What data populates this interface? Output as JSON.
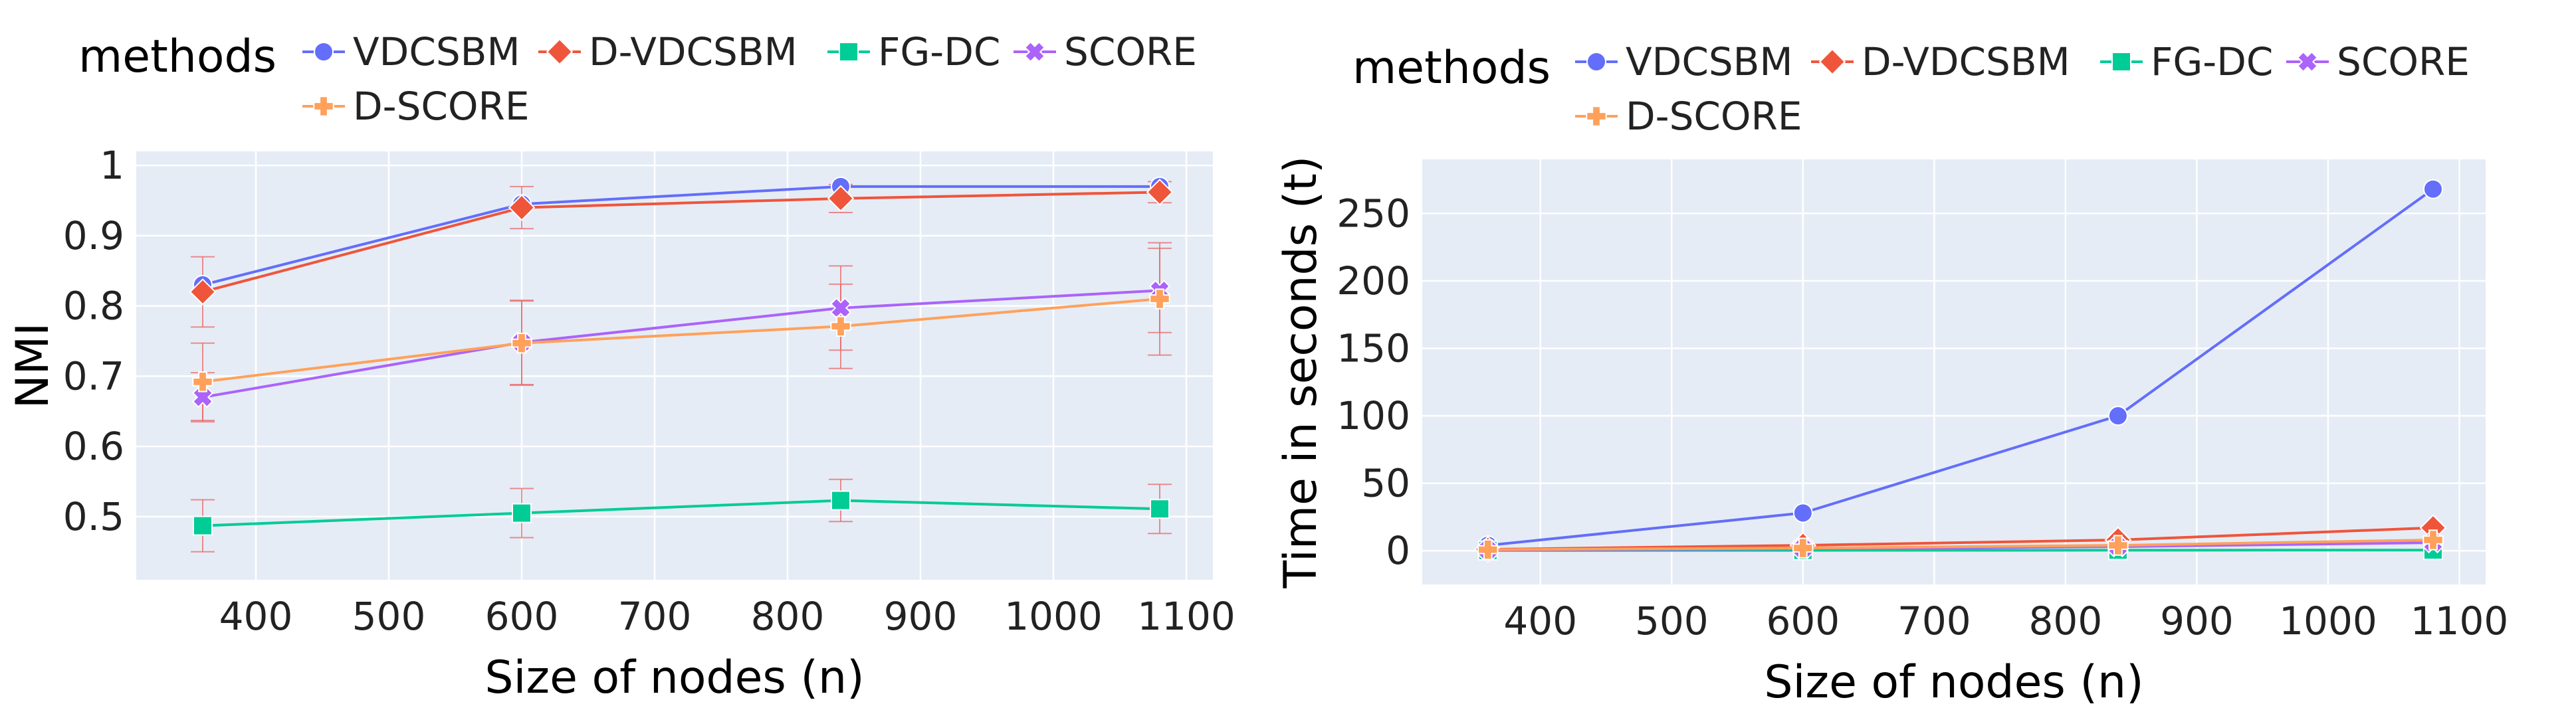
{
  "legend": {
    "title": "methods",
    "colors": {
      "VDCSBM": "#636efa",
      "D-VDCSBM": "#ef553b",
      "FG-DC": "#00cc96",
      "SCORE": "#ab63fa",
      "D-SCORE": "#ffa15a"
    },
    "markers": {
      "VDCSBM": "circle",
      "D-VDCSBM": "diamond",
      "FG-DC": "square",
      "SCORE": "x",
      "D-SCORE": "cross"
    }
  },
  "chart_data": [
    {
      "type": "line",
      "panel": "left",
      "title": "",
      "xlabel": "Size of nodes (n)",
      "ylabel": "NMI",
      "xlim": [
        310,
        1120
      ],
      "ylim": [
        0.41,
        1.02
      ],
      "xticks": [
        400,
        500,
        600,
        700,
        800,
        900,
        1000,
        1100
      ],
      "yticks": [
        0.5,
        0.6,
        0.7,
        0.8,
        0.9,
        1
      ],
      "ytick_labels": [
        "0.5",
        "0.6",
        "0.7",
        "0.8",
        "0.9",
        "1"
      ],
      "x": [
        360,
        600,
        840,
        1080
      ],
      "series": [
        {
          "name": "VDCSBM",
          "values": [
            0.83,
            0.945,
            0.97,
            0.97
          ],
          "errors": [
            0.0,
            0.0,
            0.0,
            0.0
          ]
        },
        {
          "name": "D-VDCSBM",
          "values": [
            0.82,
            0.94,
            0.953,
            0.962
          ],
          "errors": [
            0.05,
            0.03,
            0.02,
            0.015
          ]
        },
        {
          "name": "FG-DC",
          "values": [
            0.487,
            0.505,
            0.523,
            0.511
          ],
          "errors": [
            0.037,
            0.035,
            0.03,
            0.035
          ]
        },
        {
          "name": "SCORE",
          "values": [
            0.67,
            0.748,
            0.797,
            0.822
          ],
          "errors": [
            0.035,
            0.06,
            0.06,
            0.06
          ]
        },
        {
          "name": "D-SCORE",
          "values": [
            0.692,
            0.747,
            0.771,
            0.81
          ],
          "errors": [
            0.055,
            0.06,
            0.06,
            0.08
          ]
        }
      ]
    },
    {
      "type": "line",
      "panel": "right",
      "title": "",
      "xlabel": "Size of nodes (n)",
      "ylabel": "Time in seconds (t)",
      "xlim": [
        310,
        1120
      ],
      "ylim": [
        -25,
        290
      ],
      "xticks": [
        400,
        500,
        600,
        700,
        800,
        900,
        1000,
        1100
      ],
      "yticks": [
        0,
        50,
        100,
        150,
        200,
        250
      ],
      "ytick_labels": [
        "0",
        "50",
        "100",
        "150",
        "200",
        "250"
      ],
      "x": [
        360,
        600,
        840,
        1080
      ],
      "series": [
        {
          "name": "VDCSBM",
          "values": [
            4,
            28,
            100,
            268
          ]
        },
        {
          "name": "D-VDCSBM",
          "values": [
            1,
            4,
            8,
            17
          ]
        },
        {
          "name": "FG-DC",
          "values": [
            0.2,
            0.3,
            0.4,
            0.5
          ]
        },
        {
          "name": "SCORE",
          "values": [
            0.5,
            1.5,
            3,
            6
          ]
        },
        {
          "name": "D-SCORE",
          "values": [
            0.8,
            2,
            4,
            8
          ]
        }
      ]
    }
  ]
}
